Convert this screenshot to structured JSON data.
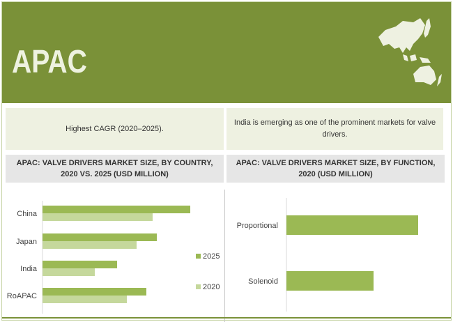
{
  "header": {
    "title": "APAC",
    "map_icon": "asia-pacific-map-icon",
    "color": "#7a9138"
  },
  "highlights": [
    {
      "text": "Highest CAGR (2020–2025)."
    },
    {
      "text": "India is emerging as one of the prominent markets for valve drivers."
    }
  ],
  "chart_titles": [
    "APAC: VALVE DRIVERS MARKET SIZE, BY COUNTRY, 2020 VS. 2025 (USD MILLION)",
    "APAC: VALVE DRIVERS MARKET SIZE, BY FUNCTION, 2020 (USD MILLION)"
  ],
  "chart_data": [
    {
      "type": "bar",
      "orientation": "horizontal",
      "title": "APAC: VALVE DRIVERS MARKET SIZE, BY COUNTRY, 2020 VS. 2025 (USD MILLION)",
      "categories": [
        "China",
        "Japan",
        "India",
        "RoAPAC"
      ],
      "series": [
        {
          "name": "2025",
          "color": "#9bb954",
          "values": [
            212,
            164,
            107,
            149
          ]
        },
        {
          "name": "2020",
          "color": "#c5d89c",
          "values": [
            158,
            135,
            75,
            121
          ]
        }
      ],
      "legend": "right",
      "grid": false,
      "value_axis_labels": false
    },
    {
      "type": "bar",
      "orientation": "horizontal",
      "title": "APAC: VALVE DRIVERS MARKET SIZE, BY FUNCTION, 2020 (USD MILLION)",
      "categories": [
        "Proportional",
        "Solenoid"
      ],
      "series": [
        {
          "color": "#9bb954",
          "values": [
            189,
            125
          ]
        }
      ],
      "grid": false,
      "value_axis_labels": false
    }
  ]
}
